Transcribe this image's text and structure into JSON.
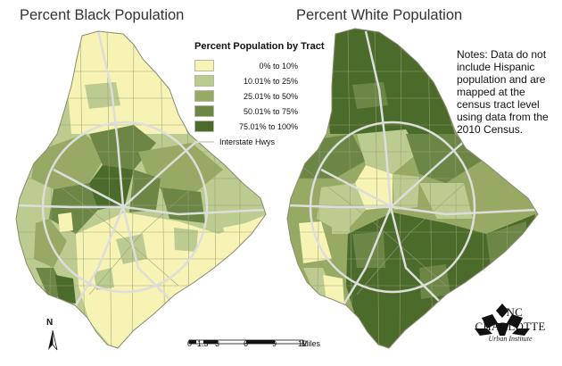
{
  "titles": {
    "left": "Percent Black Population",
    "right": "Percent White Population"
  },
  "legend": {
    "title": "Percent Population by Tract",
    "items": [
      {
        "label": "0% to 10%",
        "color": "#f7f3b4"
      },
      {
        "label": "10.01% to 25%",
        "color": "#bccb90"
      },
      {
        "label": "25.01% to 50%",
        "color": "#96aa64"
      },
      {
        "label": "50.01% to 75%",
        "color": "#6c8645"
      },
      {
        "label": "75.01% to 100%",
        "color": "#4b6b2b"
      }
    ],
    "hwy_label": "Interstate Hwys",
    "hwy_color": "#d9dcd8"
  },
  "notes": "Notes: Data do not include Hispanic population and are mapped at the census tract level using data from the 2010 Census.",
  "north": "N",
  "scale": {
    "ticks": [
      "0",
      "1.5",
      "3",
      "6",
      "9",
      "12"
    ],
    "unit": "Miles"
  },
  "logo": {
    "brand": "UNC CHARLOTTE",
    "sub": "Urban Institute"
  },
  "colors": {
    "border": "#8a8a70",
    "tract_line": "#9aa07a"
  }
}
